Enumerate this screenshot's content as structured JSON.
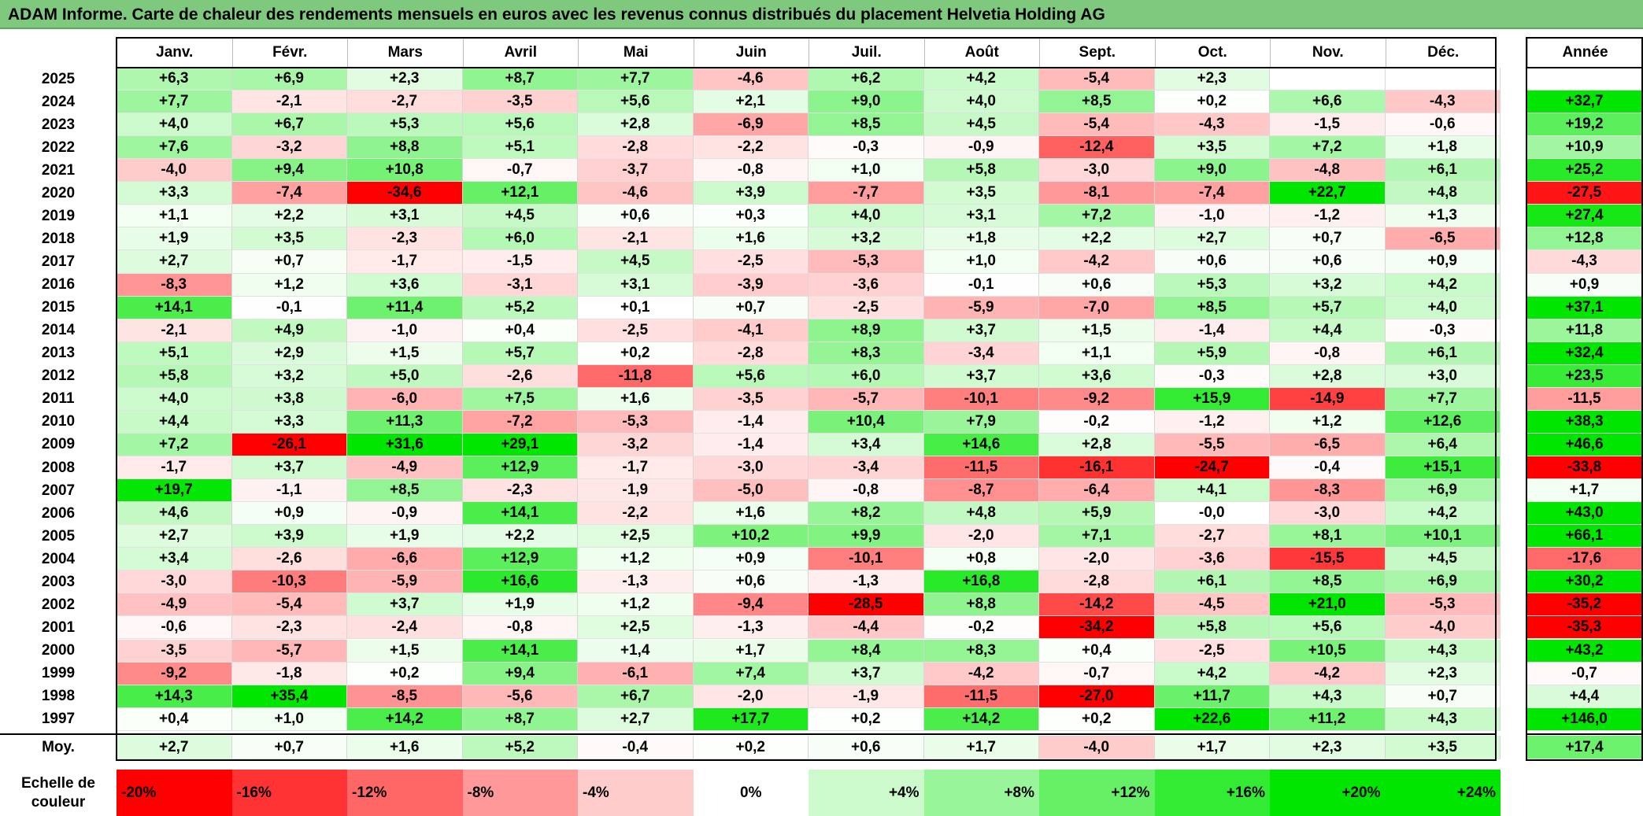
{
  "title": "ADAM Informe. Carte de chaleur des rendements mensuels en euros avec les revenus connus distribués du placement Helvetia Holding AG",
  "chart_data": {
    "type": "heatmap",
    "months": [
      "Janv.",
      "Févr.",
      "Mars",
      "Avril",
      "Mai",
      "Juin",
      "Juil.",
      "Août",
      "Sept.",
      "Oct.",
      "Nov.",
      "Déc."
    ],
    "annual_header": "Année",
    "average_label": "Moy.",
    "rows": [
      {
        "year": "2025",
        "months": [
          "+6,3",
          "+6,9",
          "+2,3",
          "+8,7",
          "+7,7",
          "-4,6",
          "+6,2",
          "+4,2",
          "-5,4",
          "+2,3",
          "",
          ""
        ],
        "annual": ""
      },
      {
        "year": "2024",
        "months": [
          "+7,7",
          "-2,1",
          "-2,7",
          "-3,5",
          "+5,6",
          "+2,1",
          "+9,0",
          "+4,0",
          "+8,5",
          "+0,2",
          "+6,6",
          "-4,3"
        ],
        "annual": "+32,7"
      },
      {
        "year": "2023",
        "months": [
          "+4,0",
          "+6,7",
          "+5,3",
          "+5,6",
          "+2,8",
          "-6,9",
          "+8,5",
          "+4,5",
          "-5,4",
          "-4,3",
          "-1,5",
          "-0,6"
        ],
        "annual": "+19,2"
      },
      {
        "year": "2022",
        "months": [
          "+7,6",
          "-3,2",
          "+8,8",
          "+5,1",
          "-2,8",
          "-2,2",
          "-0,3",
          "-0,9",
          "-12,4",
          "+3,5",
          "+7,2",
          "+1,8"
        ],
        "annual": "+10,9"
      },
      {
        "year": "2021",
        "months": [
          "-4,0",
          "+9,4",
          "+10,8",
          "-0,7",
          "-3,7",
          "-0,8",
          "+1,0",
          "+5,8",
          "-3,0",
          "+9,0",
          "-4,8",
          "+6,1"
        ],
        "annual": "+25,2"
      },
      {
        "year": "2020",
        "months": [
          "+3,3",
          "-7,4",
          "-34,6",
          "+12,1",
          "-4,6",
          "+3,9",
          "-7,7",
          "+3,5",
          "-8,1",
          "-7,4",
          "+22,7",
          "+4,8"
        ],
        "annual": "-27,5"
      },
      {
        "year": "2019",
        "months": [
          "+1,1",
          "+2,2",
          "+3,1",
          "+4,5",
          "+0,6",
          "+0,3",
          "+4,0",
          "+3,1",
          "+7,2",
          "-1,0",
          "-1,2",
          "+1,3"
        ],
        "annual": "+27,4"
      },
      {
        "year": "2018",
        "months": [
          "+1,9",
          "+3,5",
          "-2,3",
          "+6,0",
          "-2,1",
          "+1,6",
          "+3,2",
          "+1,8",
          "+2,2",
          "+2,7",
          "+0,7",
          "-6,5"
        ],
        "annual": "+12,8"
      },
      {
        "year": "2017",
        "months": [
          "+2,7",
          "+0,7",
          "-1,7",
          "-1,5",
          "+4,5",
          "-2,5",
          "-5,3",
          "+1,0",
          "-4,2",
          "+0,6",
          "+0,6",
          "+0,9"
        ],
        "annual": "-4,3"
      },
      {
        "year": "2016",
        "months": [
          "-8,3",
          "+1,2",
          "+3,6",
          "-3,1",
          "+3,1",
          "-3,9",
          "-3,6",
          "-0,1",
          "+0,6",
          "+5,3",
          "+3,2",
          "+4,2"
        ],
        "annual": "+0,9"
      },
      {
        "year": "2015",
        "months": [
          "+14,1",
          "-0,1",
          "+11,4",
          "+5,2",
          "+0,1",
          "+0,7",
          "-2,5",
          "-5,9",
          "-7,0",
          "+8,5",
          "+5,7",
          "+4,0"
        ],
        "annual": "+37,1"
      },
      {
        "year": "2014",
        "months": [
          "-2,1",
          "+4,9",
          "-1,0",
          "+0,4",
          "-2,5",
          "-4,1",
          "+8,9",
          "+3,7",
          "+1,5",
          "-1,4",
          "+4,4",
          "-0,3"
        ],
        "annual": "+11,8"
      },
      {
        "year": "2013",
        "months": [
          "+5,1",
          "+2,9",
          "+1,5",
          "+5,7",
          "+0,2",
          "-2,8",
          "+8,3",
          "-3,4",
          "+1,1",
          "+5,9",
          "-0,8",
          "+6,1"
        ],
        "annual": "+32,4"
      },
      {
        "year": "2012",
        "months": [
          "+5,8",
          "+3,2",
          "+5,0",
          "-2,6",
          "-11,8",
          "+5,6",
          "+6,0",
          "+3,7",
          "+3,6",
          "-0,3",
          "+2,8",
          "+3,0"
        ],
        "annual": "+23,5"
      },
      {
        "year": "2011",
        "months": [
          "+4,0",
          "+3,8",
          "-6,0",
          "+7,5",
          "+1,6",
          "-3,5",
          "-5,7",
          "-10,1",
          "-9,2",
          "+15,9",
          "-14,9",
          "+7,7"
        ],
        "annual": "-11,5"
      },
      {
        "year": "2010",
        "months": [
          "+4,4",
          "+3,3",
          "+11,3",
          "-7,2",
          "-5,3",
          "-1,4",
          "+10,4",
          "+7,9",
          "-0,2",
          "-1,2",
          "+1,2",
          "+12,6"
        ],
        "annual": "+38,3"
      },
      {
        "year": "2009",
        "months": [
          "+7,2",
          "-26,1",
          "+31,6",
          "+29,1",
          "-3,2",
          "-1,4",
          "+3,4",
          "+14,6",
          "+2,8",
          "-5,5",
          "-6,5",
          "+6,4"
        ],
        "annual": "+46,6"
      },
      {
        "year": "2008",
        "months": [
          "-1,7",
          "+3,7",
          "-4,9",
          "+12,9",
          "-1,7",
          "-3,0",
          "-3,4",
          "-11,5",
          "-16,1",
          "-24,7",
          "-0,4",
          "+15,1"
        ],
        "annual": "-33,8"
      },
      {
        "year": "2007",
        "months": [
          "+19,7",
          "-1,1",
          "+8,5",
          "-2,3",
          "-1,9",
          "-5,0",
          "-0,8",
          "-8,7",
          "-6,4",
          "+4,1",
          "-8,3",
          "+6,9"
        ],
        "annual": "+1,7"
      },
      {
        "year": "2006",
        "months": [
          "+4,6",
          "+0,9",
          "-0,9",
          "+14,1",
          "-2,2",
          "+1,6",
          "+8,2",
          "+4,8",
          "+5,9",
          "-0,0",
          "-3,0",
          "+4,2"
        ],
        "annual": "+43,0"
      },
      {
        "year": "2005",
        "months": [
          "+2,7",
          "+3,9",
          "+1,9",
          "+2,2",
          "+2,5",
          "+10,2",
          "+9,9",
          "-2,0",
          "+7,1",
          "-2,7",
          "+8,1",
          "+10,1"
        ],
        "annual": "+66,1"
      },
      {
        "year": "2004",
        "months": [
          "+3,4",
          "-2,6",
          "-6,6",
          "+12,9",
          "+1,2",
          "+0,9",
          "-10,1",
          "+0,8",
          "-2,0",
          "-3,6",
          "-15,5",
          "+4,5"
        ],
        "annual": "-17,6"
      },
      {
        "year": "2003",
        "months": [
          "-3,0",
          "-10,3",
          "-5,9",
          "+16,6",
          "-1,3",
          "+0,6",
          "-1,3",
          "+16,8",
          "-2,8",
          "+6,1",
          "+8,5",
          "+6,9"
        ],
        "annual": "+30,2"
      },
      {
        "year": "2002",
        "months": [
          "-4,9",
          "-5,4",
          "+3,7",
          "+1,9",
          "+1,2",
          "-9,4",
          "-28,5",
          "+8,8",
          "-14,2",
          "-4,5",
          "+21,0",
          "-5,3"
        ],
        "annual": "-35,2"
      },
      {
        "year": "2001",
        "months": [
          "-0,6",
          "-2,3",
          "-2,4",
          "-0,8",
          "+2,5",
          "-1,3",
          "-4,4",
          "-0,2",
          "-34,2",
          "+5,8",
          "+5,6",
          "-4,0"
        ],
        "annual": "-35,3"
      },
      {
        "year": "2000",
        "months": [
          "-3,5",
          "-5,7",
          "+1,5",
          "+14,1",
          "+1,4",
          "+1,7",
          "+8,4",
          "+8,3",
          "+0,4",
          "-2,5",
          "+10,5",
          "+4,3"
        ],
        "annual": "+43,2"
      },
      {
        "year": "1999",
        "months": [
          "-9,2",
          "-1,8",
          "+0,2",
          "+9,4",
          "-6,1",
          "+7,4",
          "+3,7",
          "-4,2",
          "-0,7",
          "+4,2",
          "-4,2",
          "+2,3"
        ],
        "annual": "-0,7"
      },
      {
        "year": "1998",
        "months": [
          "+14,3",
          "+35,4",
          "-8,5",
          "-5,6",
          "+6,7",
          "-2,0",
          "-1,9",
          "-11,5",
          "-27,0",
          "+11,7",
          "+4,3",
          "+0,7"
        ],
        "annual": "+4,4"
      },
      {
        "year": "1997",
        "months": [
          "+0,4",
          "+1,0",
          "+14,2",
          "+8,7",
          "+2,7",
          "+17,7",
          "+0,2",
          "+14,2",
          "+0,2",
          "+22,6",
          "+11,2",
          "+4,3"
        ],
        "annual": "+146,0"
      }
    ],
    "average": {
      "months": [
        "+2,7",
        "+0,7",
        "+1,6",
        "+5,2",
        "-0,4",
        "+0,2",
        "+0,6",
        "+1,7",
        "-4,0",
        "+1,7",
        "+2,3",
        "+3,5"
      ],
      "annual": "+17,4"
    },
    "scale": {
      "label": "Echelle de couleur",
      "stops": [
        "-20%",
        "-16%",
        "-12%",
        "-8%",
        "-4%",
        "0%",
        "+4%",
        "+8%",
        "+12%",
        "+16%",
        "+20%",
        "+24%"
      ],
      "stop_values": [
        -20,
        -16,
        -12,
        -8,
        -4,
        0,
        4,
        8,
        12,
        16,
        20,
        24
      ]
    },
    "colors": {
      "negative_max": "#ff0000",
      "neutral": "#ffffff",
      "positive_max": "#00e600"
    }
  }
}
